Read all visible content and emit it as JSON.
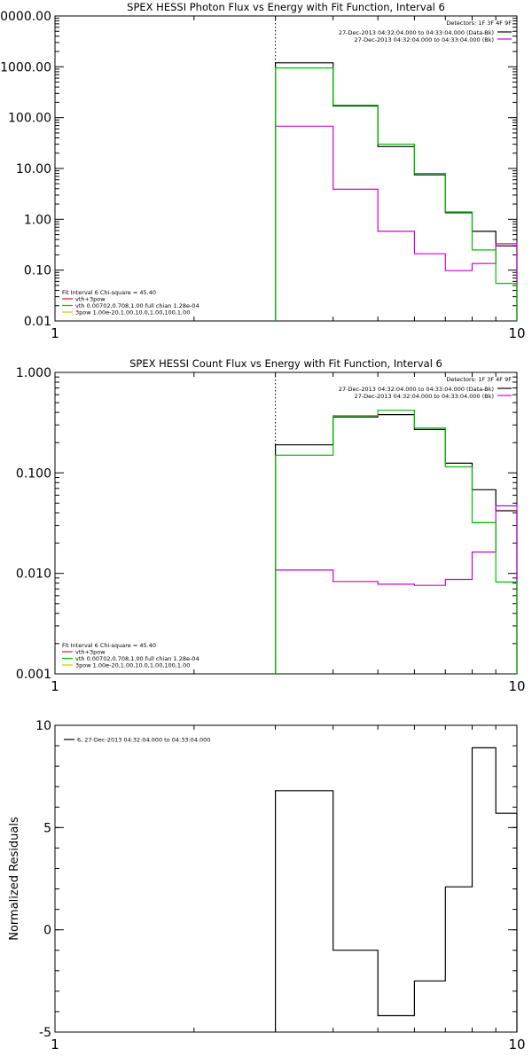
{
  "chart_data": [
    {
      "type": "line",
      "title": "SPEX HESSI Photon Flux vs Energy with Fit Function, Interval 6",
      "xscale": "log",
      "yscale": "log",
      "xlim": [
        1,
        10
      ],
      "ylim": [
        0.01,
        10000
      ],
      "xticks": [
        {
          "v": 1,
          "label": "1"
        },
        {
          "v": 10,
          "label": "10"
        }
      ],
      "yticks": [
        {
          "v": 0.01,
          "label": "0.01"
        },
        {
          "v": 0.1,
          "label": "0.10"
        },
        {
          "v": 1,
          "label": "1.00"
        },
        {
          "v": 10,
          "label": "10.00"
        },
        {
          "v": 100,
          "label": "100.00"
        },
        {
          "v": 1000,
          "label": "1000.00"
        },
        {
          "v": 10000,
          "label": "10000.00"
        }
      ],
      "fit_marker_x": 3.0,
      "detectors_label": "Detectors: 1F 3F 4F 9F",
      "legend": [
        {
          "label": "27-Dec-2013 04:32:04.000 to 04:33:04.000 (Data-Bk)",
          "color": "#000000"
        },
        {
          "label": "27-Dec-2013 04:32:04.000 to 04:33:04.000 (Bk)",
          "color": "#d000d0"
        }
      ],
      "fit_info": {
        "header": "Fit Interval 6   Chi-square = 45.40",
        "lines": [
          {
            "label": "vth+3pow",
            "color": "#d02020"
          },
          {
            "label": "vth 0.00702,0.708,1.00  full chian 1.28e-04",
            "color": "#00c000"
          },
          {
            "label": "3pow 1.00e-20,1.00,10.0,1.00,100,1.00",
            "color": "#c8c800"
          }
        ]
      },
      "edges": [
        3.0,
        4.0,
        5.0,
        6.0,
        7.0,
        8.0,
        9.0,
        10.0
      ],
      "series": [
        {
          "name": "Data-Bk",
          "color": "#000000",
          "values": [
            1200,
            170,
            27,
            7.5,
            1.35,
            0.58,
            0.3
          ]
        },
        {
          "name": "Bk",
          "color": "#d000d0",
          "values": [
            68,
            3.9,
            0.58,
            0.21,
            0.098,
            0.135,
            0.33
          ]
        },
        {
          "name": "vth+3pow",
          "color": "#00c000",
          "values": [
            950,
            175,
            30,
            8.0,
            1.4,
            0.25,
            0.055
          ]
        }
      ]
    },
    {
      "type": "line",
      "title": "SPEX HESSI Count Flux vs Energy with Fit Function, Interval 6",
      "xscale": "log",
      "yscale": "log",
      "xlim": [
        1,
        10
      ],
      "ylim": [
        0.001,
        1.0
      ],
      "xticks": [
        {
          "v": 1,
          "label": "1"
        },
        {
          "v": 10,
          "label": "10"
        }
      ],
      "yticks": [
        {
          "v": 0.001,
          "label": "0.001"
        },
        {
          "v": 0.01,
          "label": "0.010"
        },
        {
          "v": 0.1,
          "label": "0.100"
        },
        {
          "v": 1,
          "label": "1.000"
        }
      ],
      "fit_marker_x": 3.0,
      "detectors_label": "Detectors: 1F 3F 4F 9F",
      "legend": [
        {
          "label": "27-Dec-2013 04:32:04.000 to 04:33:04.000 (Data-Bk)",
          "color": "#000000"
        },
        {
          "label": "27-Dec-2013 04:32:04.000 to 04:33:04.000 (Bk)",
          "color": "#d000d0"
        }
      ],
      "fit_info": {
        "header": "Fit Interval 6   Chi-square = 45.40",
        "lines": [
          {
            "label": "vth+3pow",
            "color": "#d02020"
          },
          {
            "label": "vth 0.00702,0.708,1.00  full chian 1.28e-04",
            "color": "#00c000"
          },
          {
            "label": "3pow 1.00e-20,1.00,10.0,1.00,100,1.00",
            "color": "#c8c800"
          }
        ]
      },
      "edges": [
        3.0,
        4.0,
        5.0,
        6.0,
        7.0,
        8.0,
        9.0,
        10.0
      ],
      "series": [
        {
          "name": "Data-Bk",
          "color": "#000000",
          "values": [
            0.19,
            0.36,
            0.38,
            0.27,
            0.125,
            0.068,
            0.042
          ]
        },
        {
          "name": "Bk",
          "color": "#d000d0",
          "values": [
            0.0108,
            0.0083,
            0.0078,
            0.0076,
            0.0087,
            0.0163,
            0.047
          ]
        },
        {
          "name": "vth+3pow",
          "color": "#00c000",
          "values": [
            0.15,
            0.37,
            0.42,
            0.28,
            0.115,
            0.032,
            0.0082
          ]
        }
      ]
    },
    {
      "type": "line",
      "title": "",
      "ylabel": "Normalized  Residuals",
      "xscale": "log",
      "yscale": "linear",
      "xlim": [
        1,
        10
      ],
      "ylim": [
        -5,
        10
      ],
      "xticks": [
        {
          "v": 1,
          "label": "1"
        },
        {
          "v": 10,
          "label": "10"
        }
      ],
      "yticks": [
        {
          "v": -5,
          "label": "-5"
        },
        {
          "v": 0,
          "label": "0"
        },
        {
          "v": 5,
          "label": "5"
        },
        {
          "v": 10,
          "label": "10"
        }
      ],
      "legend": [
        {
          "label": "6, 27-Dec-2013 04:32:04.000 to 04:33:04.000",
          "color": "#000000"
        }
      ],
      "edges": [
        3.0,
        4.0,
        5.0,
        6.0,
        7.0,
        8.0,
        9.0,
        10.0
      ],
      "series": [
        {
          "name": "6",
          "color": "#000000",
          "values": [
            6.8,
            -1.0,
            -4.2,
            -2.5,
            2.1,
            8.9,
            5.7
          ]
        }
      ]
    }
  ]
}
